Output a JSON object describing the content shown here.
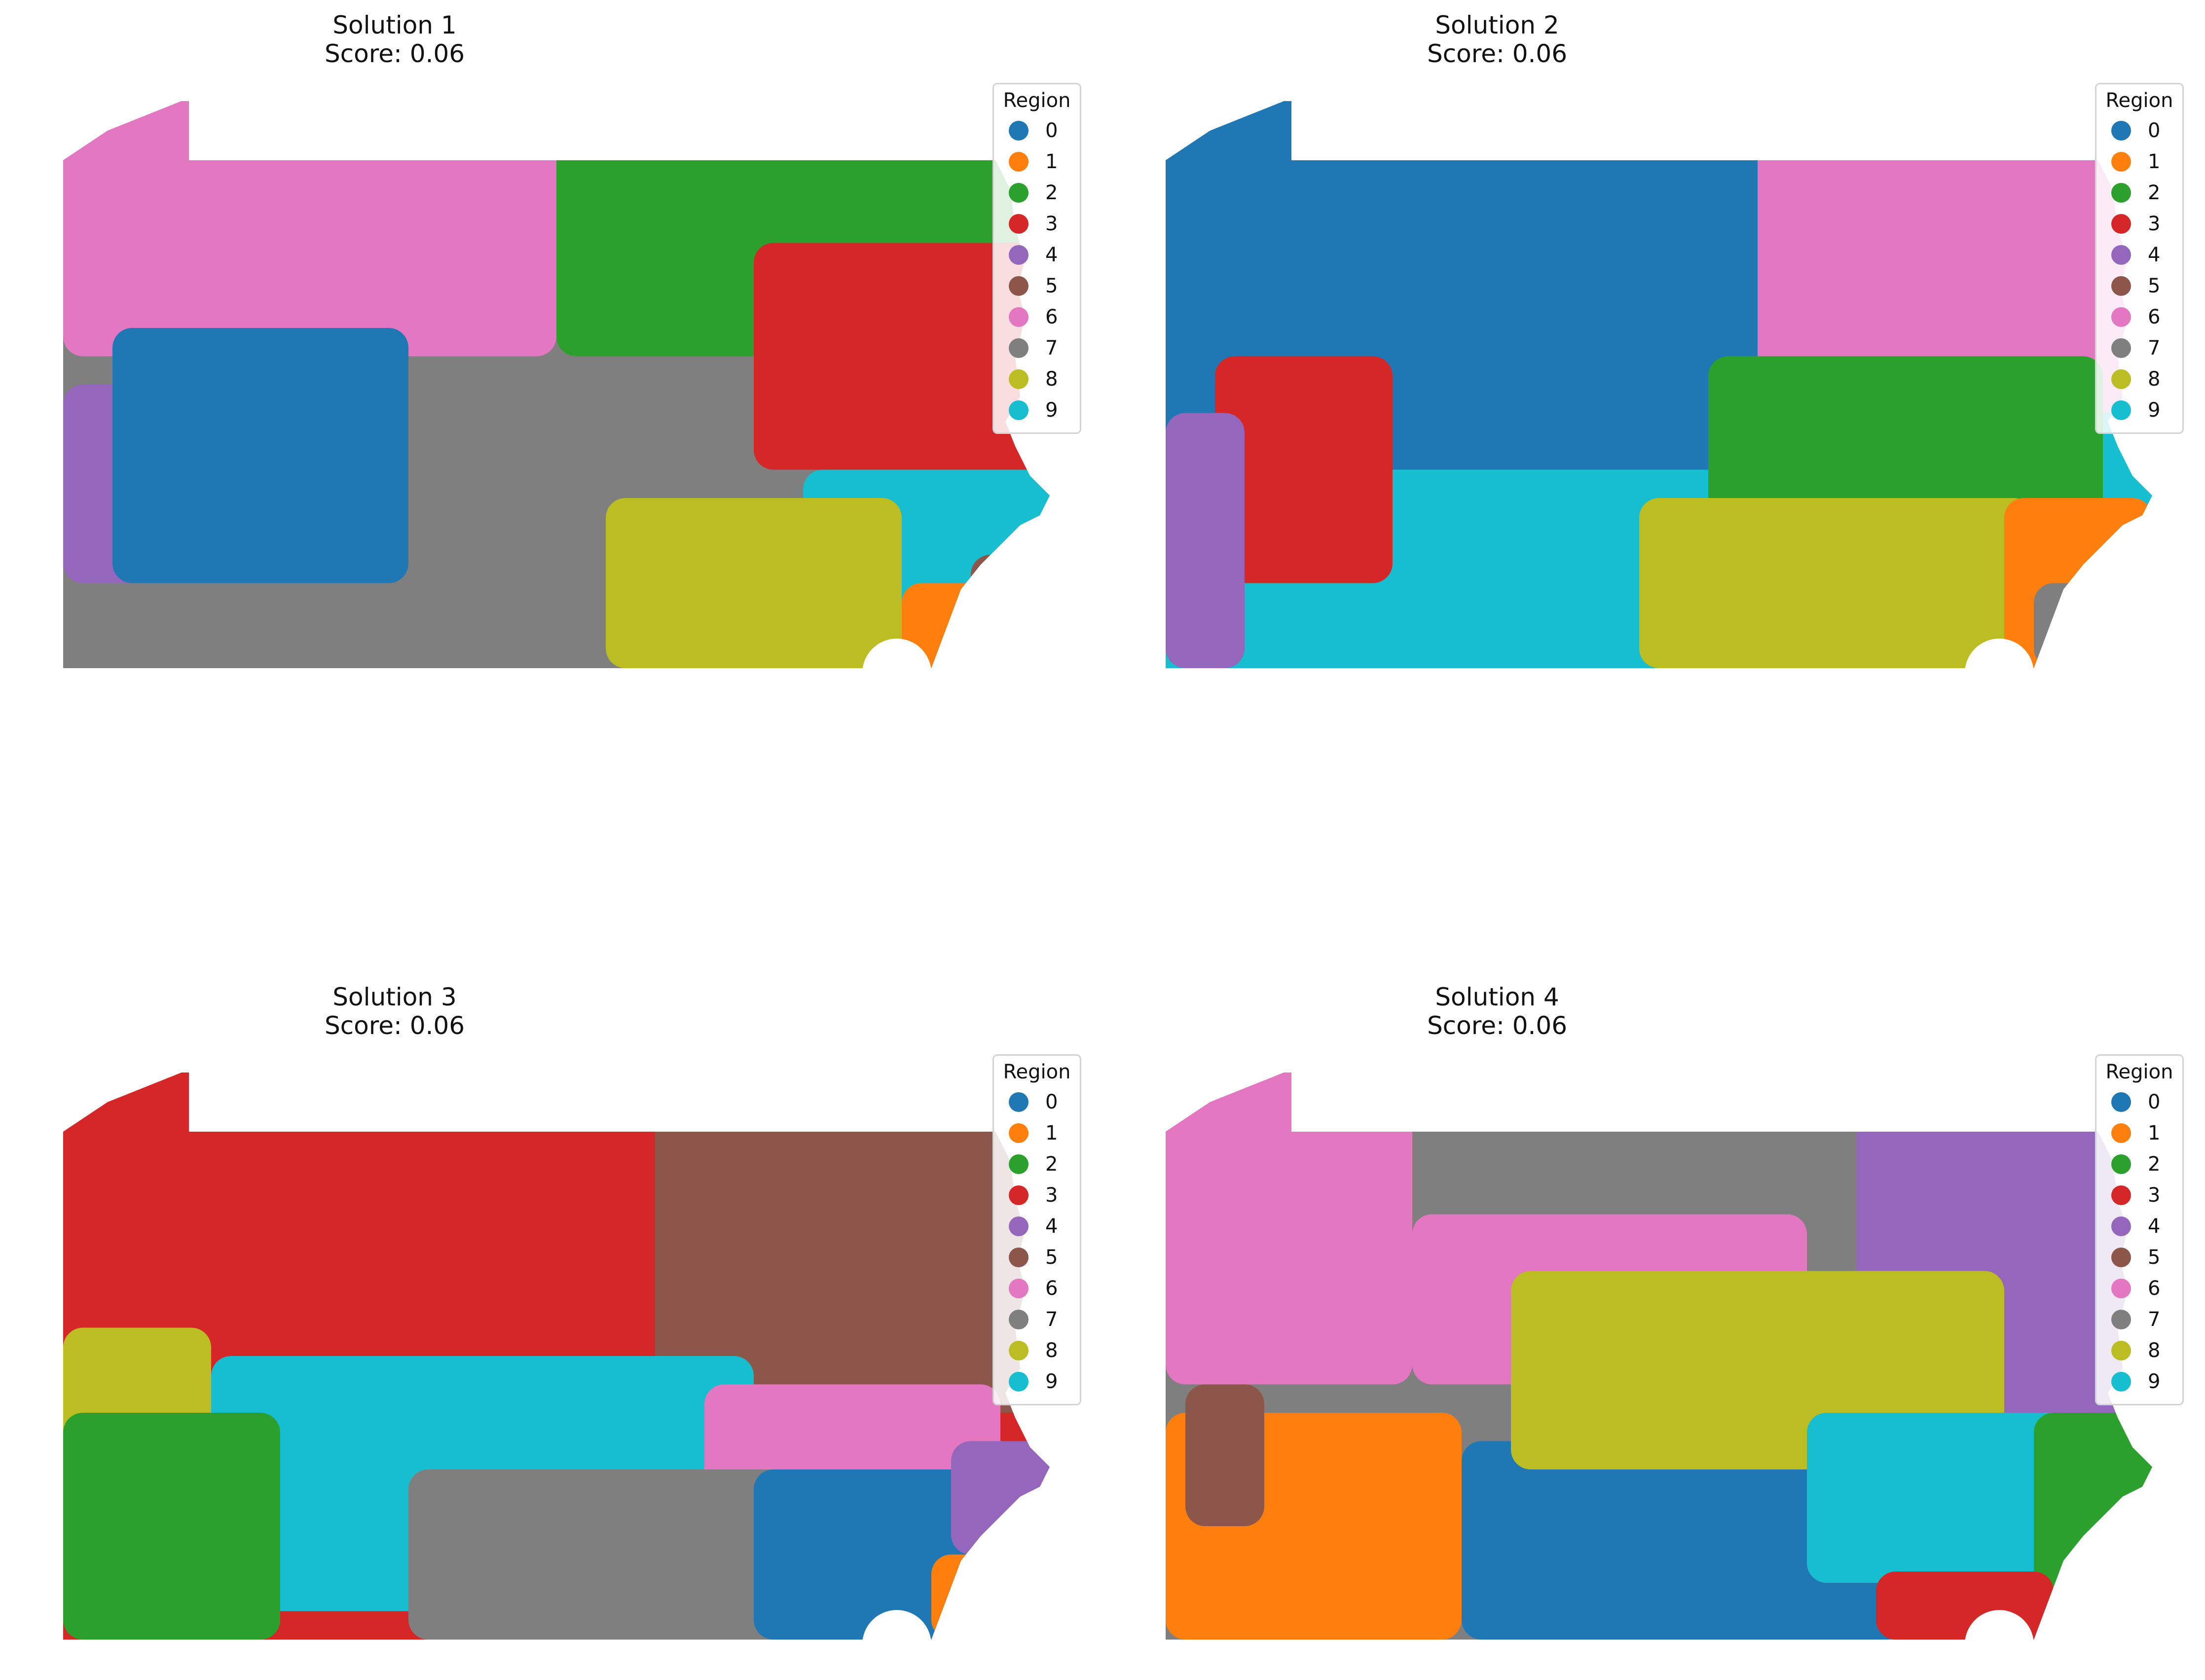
{
  "colors": {
    "0": "#1f77b4",
    "1": "#ff7f0e",
    "2": "#2ca02c",
    "3": "#d62728",
    "4": "#9467bd",
    "5": "#8c564b",
    "6": "#e377c2",
    "7": "#7f7f7f",
    "8": "#bcbd22",
    "9": "#17becf"
  },
  "legend": {
    "title": "Region",
    "items": [
      "0",
      "1",
      "2",
      "3",
      "4",
      "5",
      "6",
      "7",
      "8",
      "9"
    ]
  },
  "panels": [
    {
      "title": "Solution 1",
      "score": "Score: 0.06",
      "base": "7",
      "blobs": [
        [
          "6",
          0.0,
          0.0,
          0.5,
          0.45
        ],
        [
          "2",
          0.5,
          0.0,
          0.5,
          0.45
        ],
        [
          "3",
          0.7,
          0.25,
          0.3,
          0.4
        ],
        [
          "4",
          0.0,
          0.5,
          0.15,
          0.35
        ],
        [
          "0",
          0.05,
          0.4,
          0.3,
          0.45
        ],
        [
          "9",
          0.75,
          0.65,
          0.25,
          0.25
        ],
        [
          "8",
          0.55,
          0.7,
          0.3,
          0.3
        ],
        [
          "1",
          0.85,
          0.85,
          0.1,
          0.15
        ],
        [
          "5",
          0.92,
          0.8,
          0.08,
          0.2
        ]
      ]
    },
    {
      "title": "Solution 2",
      "score": "Score: 0.06",
      "base": "9",
      "blobs": [
        [
          "0",
          0.0,
          0.0,
          0.65,
          0.65
        ],
        [
          "6",
          0.6,
          0.0,
          0.4,
          0.55
        ],
        [
          "2",
          0.55,
          0.45,
          0.4,
          0.4
        ],
        [
          "3",
          0.05,
          0.45,
          0.18,
          0.4
        ],
        [
          "4",
          0.0,
          0.55,
          0.08,
          0.45
        ],
        [
          "8",
          0.48,
          0.7,
          0.4,
          0.3
        ],
        [
          "1",
          0.85,
          0.7,
          0.15,
          0.3
        ],
        [
          "7",
          0.88,
          0.85,
          0.12,
          0.15
        ]
      ]
    },
    {
      "title": "Solution 3",
      "score": "Score: 0.06",
      "base": "3",
      "blobs": [
        [
          "5",
          0.6,
          0.0,
          0.4,
          0.6
        ],
        [
          "9",
          0.15,
          0.5,
          0.55,
          0.45
        ],
        [
          "6",
          0.65,
          0.55,
          0.3,
          0.3
        ],
        [
          "8",
          0.0,
          0.45,
          0.15,
          0.3
        ],
        [
          "2",
          0.0,
          0.6,
          0.22,
          0.4
        ],
        [
          "7",
          0.35,
          0.7,
          0.4,
          0.3
        ],
        [
          "0",
          0.7,
          0.7,
          0.25,
          0.3
        ],
        [
          "4",
          0.9,
          0.65,
          0.1,
          0.2
        ],
        [
          "1",
          0.88,
          0.85,
          0.08,
          0.15
        ]
      ]
    },
    {
      "title": "Solution 4",
      "score": "Score: 0.06",
      "base": "7",
      "blobs": [
        [
          "6",
          0.0,
          0.0,
          0.25,
          0.55
        ],
        [
          "6",
          0.25,
          0.25,
          0.4,
          0.3
        ],
        [
          "4",
          0.7,
          0.0,
          0.3,
          0.6
        ],
        [
          "1",
          0.0,
          0.6,
          0.3,
          0.4
        ],
        [
          "5",
          0.02,
          0.55,
          0.08,
          0.25
        ],
        [
          "0",
          0.3,
          0.65,
          0.45,
          0.35
        ],
        [
          "8",
          0.35,
          0.35,
          0.5,
          0.35
        ],
        [
          "9",
          0.65,
          0.6,
          0.3,
          0.3
        ],
        [
          "2",
          0.88,
          0.6,
          0.12,
          0.35
        ],
        [
          "3",
          0.72,
          0.88,
          0.18,
          0.12
        ]
      ]
    }
  ]
}
